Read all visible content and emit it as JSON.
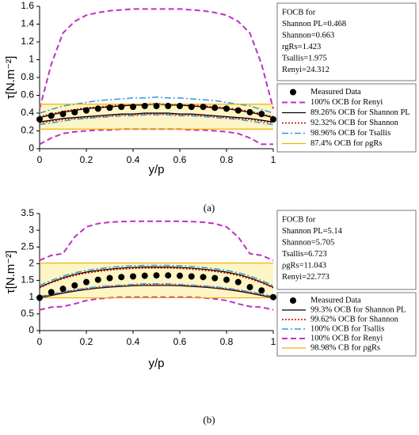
{
  "chart_data": [
    {
      "type": "band-line",
      "caption": "(a)",
      "xlabel": "y/p",
      "ylabel": "τ[N.m⁻²]",
      "xlim": [
        0,
        1
      ],
      "xticks": [
        0,
        0.2,
        0.4,
        0.6,
        0.8,
        1
      ],
      "ylim": [
        0,
        1.6
      ],
      "yticks": [
        0,
        0.2,
        0.4,
        0.6,
        0.8,
        1,
        1.2,
        1.4,
        1.6
      ],
      "notes": [
        "FOCB for",
        "Shannon PL=0.468",
        "Shannon=0.663",
        "rgRs=1.423",
        "Tsallis=1.975",
        "Renyi=24.312"
      ],
      "x": [
        0,
        0.05,
        0.1,
        0.15,
        0.2,
        0.25,
        0.3,
        0.35,
        0.4,
        0.45,
        0.5,
        0.55,
        0.6,
        0.65,
        0.7,
        0.75,
        0.8,
        0.85,
        0.9,
        0.95,
        1
      ],
      "series": [
        {
          "name": "Measured Data",
          "color": "#000000",
          "style": "markers",
          "values": [
            0.33,
            0.37,
            0.39,
            0.41,
            0.43,
            0.45,
            0.46,
            0.47,
            0.47,
            0.48,
            0.48,
            0.48,
            0.48,
            0.47,
            0.47,
            0.46,
            0.45,
            0.43,
            0.41,
            0.39,
            0.33
          ]
        },
        {
          "name": "100% OCB for Renyi",
          "color": "#c030c0",
          "style": "dashed",
          "upper": [
            0.45,
            0.95,
            1.3,
            1.43,
            1.5,
            1.53,
            1.55,
            1.56,
            1.57,
            1.57,
            1.57,
            1.57,
            1.57,
            1.56,
            1.55,
            1.53,
            1.5,
            1.43,
            1.3,
            0.95,
            0.45
          ],
          "lower": [
            0.05,
            0.12,
            0.17,
            0.19,
            0.2,
            0.21,
            0.21,
            0.22,
            0.22,
            0.22,
            0.22,
            0.22,
            0.22,
            0.21,
            0.21,
            0.2,
            0.19,
            0.17,
            0.12,
            0.05,
            0.05
          ]
        },
        {
          "name": "89.26% OCB for Shannon PL",
          "color": "#000000",
          "style": "solid",
          "upper": [
            0.35,
            0.38,
            0.41,
            0.43,
            0.45,
            0.46,
            0.47,
            0.48,
            0.49,
            0.49,
            0.5,
            0.49,
            0.49,
            0.48,
            0.47,
            0.46,
            0.45,
            0.43,
            0.41,
            0.38,
            0.35
          ],
          "lower": [
            0.3,
            0.32,
            0.34,
            0.35,
            0.36,
            0.37,
            0.38,
            0.39,
            0.39,
            0.4,
            0.4,
            0.4,
            0.39,
            0.39,
            0.38,
            0.37,
            0.36,
            0.35,
            0.34,
            0.32,
            0.3
          ]
        },
        {
          "name": "92.32% OCB for Shannon",
          "color": "#c00000",
          "style": "dotted",
          "upper": [
            0.36,
            0.39,
            0.42,
            0.44,
            0.46,
            0.47,
            0.48,
            0.49,
            0.5,
            0.5,
            0.51,
            0.5,
            0.5,
            0.49,
            0.48,
            0.47,
            0.46,
            0.44,
            0.42,
            0.39,
            0.36
          ],
          "lower": [
            0.29,
            0.31,
            0.33,
            0.34,
            0.35,
            0.36,
            0.37,
            0.38,
            0.38,
            0.39,
            0.39,
            0.39,
            0.38,
            0.38,
            0.37,
            0.36,
            0.35,
            0.34,
            0.33,
            0.31,
            0.29
          ]
        },
        {
          "name": "98.96% OCB for Tsallis",
          "color": "#3399dd",
          "style": "dashdot",
          "upper": [
            0.4,
            0.44,
            0.48,
            0.5,
            0.52,
            0.54,
            0.55,
            0.56,
            0.57,
            0.57,
            0.58,
            0.57,
            0.57,
            0.56,
            0.55,
            0.54,
            0.52,
            0.5,
            0.48,
            0.44,
            0.4
          ],
          "lower": [
            0.27,
            0.29,
            0.31,
            0.33,
            0.34,
            0.35,
            0.36,
            0.37,
            0.37,
            0.38,
            0.38,
            0.38,
            0.37,
            0.37,
            0.36,
            0.35,
            0.34,
            0.33,
            0.31,
            0.29,
            0.27
          ]
        },
        {
          "name": "87.4% OCB for ρgRs",
          "color": "#f0b000",
          "fill": "#fdf5c4",
          "style": "solid",
          "upper": 0.5,
          "lower": 0.22
        }
      ]
    },
    {
      "type": "band-line",
      "caption": "(b)",
      "xlabel": "y/p",
      "ylabel": "τ[N.m⁻²]",
      "xlim": [
        0,
        1
      ],
      "xticks": [
        0,
        0.2,
        0.4,
        0.6,
        0.8,
        1
      ],
      "ylim": [
        0,
        3.5
      ],
      "yticks": [
        0,
        0.5,
        1,
        1.5,
        2,
        2.5,
        3,
        3.5
      ],
      "notes": [
        "FOCB for",
        "Shannon PL=5.14",
        "Shannon=5.705",
        "Tsallis=6.723",
        "ρgRs=11.043",
        "Renyi=22.773"
      ],
      "x": [
        0,
        0.05,
        0.1,
        0.15,
        0.2,
        0.25,
        0.3,
        0.35,
        0.4,
        0.45,
        0.5,
        0.55,
        0.6,
        0.65,
        0.7,
        0.75,
        0.8,
        0.85,
        0.9,
        0.95,
        1
      ],
      "series": [
        {
          "name": "Measured Data",
          "color": "#000000",
          "style": "markers",
          "values": [
            0.98,
            1.15,
            1.25,
            1.35,
            1.45,
            1.52,
            1.57,
            1.6,
            1.62,
            1.64,
            1.65,
            1.65,
            1.64,
            1.62,
            1.6,
            1.57,
            1.52,
            1.45,
            1.3,
            1.2,
            1
          ]
        },
        {
          "name": "99.3% OCB for Shannon PL",
          "color": "#000000",
          "style": "solid",
          "upper": [
            1.3,
            1.45,
            1.58,
            1.68,
            1.75,
            1.8,
            1.84,
            1.87,
            1.89,
            1.9,
            1.9,
            1.9,
            1.89,
            1.87,
            1.84,
            1.8,
            1.75,
            1.68,
            1.58,
            1.45,
            1.3
          ],
          "lower": [
            0.98,
            1.05,
            1.12,
            1.18,
            1.23,
            1.27,
            1.3,
            1.32,
            1.34,
            1.35,
            1.35,
            1.35,
            1.34,
            1.32,
            1.3,
            1.27,
            1.23,
            1.18,
            1.12,
            1.05,
            0.98
          ]
        },
        {
          "name": "99.62% OCB for Shannon",
          "color": "#c00000",
          "style": "dotted",
          "upper": [
            1.28,
            1.43,
            1.55,
            1.65,
            1.72,
            1.77,
            1.81,
            1.84,
            1.86,
            1.87,
            1.87,
            1.87,
            1.86,
            1.84,
            1.81,
            1.77,
            1.72,
            1.65,
            1.55,
            1.43,
            1.28
          ],
          "lower": [
            1,
            1.07,
            1.14,
            1.2,
            1.25,
            1.29,
            1.32,
            1.34,
            1.36,
            1.37,
            1.37,
            1.37,
            1.36,
            1.34,
            1.32,
            1.29,
            1.25,
            1.2,
            1.14,
            1.07,
            1
          ]
        },
        {
          "name": "100% OCB for Tsallis",
          "color": "#3399dd",
          "style": "dashdot",
          "upper": [
            1.35,
            1.5,
            1.63,
            1.73,
            1.8,
            1.85,
            1.89,
            1.92,
            1.94,
            1.95,
            1.95,
            1.95,
            1.94,
            1.92,
            1.89,
            1.85,
            1.8,
            1.73,
            1.63,
            1.5,
            1.35
          ],
          "lower": [
            1.02,
            1.09,
            1.16,
            1.22,
            1.27,
            1.31,
            1.34,
            1.36,
            1.38,
            1.4,
            1.4,
            1.4,
            1.38,
            1.36,
            1.34,
            1.31,
            1.27,
            1.22,
            1.16,
            1.09,
            1.02
          ]
        },
        {
          "name": "100% OCB for Renyi",
          "color": "#c030c0",
          "style": "dashed",
          "upper": [
            2.1,
            2.25,
            2.3,
            2.8,
            3.1,
            3.2,
            3.24,
            3.26,
            3.27,
            3.27,
            3.27,
            3.27,
            3.27,
            3.26,
            3.24,
            3.2,
            3.1,
            2.8,
            2.3,
            2.25,
            2.1
          ],
          "lower": [
            0.62,
            0.7,
            0.72,
            0.8,
            0.9,
            0.95,
            0.98,
            1,
            1,
            1,
            1,
            1,
            1,
            1,
            0.98,
            0.95,
            0.9,
            0.8,
            0.72,
            0.7,
            0.62
          ]
        },
        {
          "name": "98.98% CB for ρgRs",
          "color": "#f0b000",
          "fill": "#fdf5c4",
          "style": "solid",
          "upper": 2.02,
          "lower": 0.98
        }
      ]
    }
  ]
}
